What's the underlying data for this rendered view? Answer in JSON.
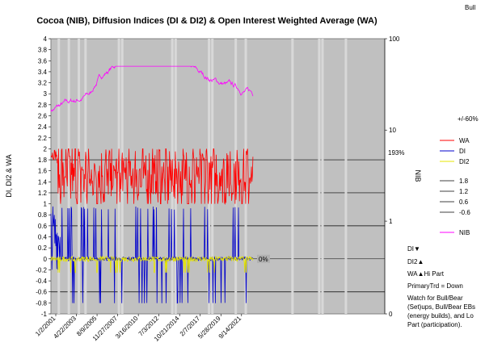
{
  "corner_label": "Bull",
  "chart_data": {
    "type": "line",
    "title": "Cocoa (NIB), Diffusion Indices (DI & DI2) & Open Interest Weighted Average (WA)",
    "ylabel": "DI, DI2 & WA",
    "y2label": "NIB",
    "ylim": [
      -1,
      4
    ],
    "y_ticks": [
      "-1",
      "-0.8",
      "-0.6",
      "-0.4",
      "-0.2",
      "0",
      "0.2",
      "0.4",
      "0.6",
      "0.8",
      "1",
      "1.2",
      "1.4",
      "1.6",
      "1.8",
      "2",
      "2.2",
      "2.4",
      "2.6",
      "2.8",
      "3",
      "3.2",
      "3.4",
      "3.6",
      "3.8",
      "4"
    ],
    "y2_scale": "log",
    "y2_ticks": [
      "0",
      "1",
      "10",
      "100"
    ],
    "x_tick_labels": [
      "1/2/2001",
      "4/22/2003",
      "8/9/2005",
      "11/27/2007",
      "3/16/2010",
      "7/3/2012",
      "10/21/2014",
      "2/7/2017",
      "5/28/2019",
      "9/14/2021"
    ],
    "reference_lines": [
      1.8,
      1.2,
      0.6,
      -0.6
    ],
    "annotations": [
      {
        "text": "193%",
        "y": 1.93
      },
      {
        "text": "0%",
        "y": 0.0
      },
      {
        "text": "+/-60%",
        "y": 2.67
      }
    ],
    "series": [
      {
        "name": "WA",
        "color": "#ff0000",
        "range": [
          1.0,
          2.0
        ]
      },
      {
        "name": "DI",
        "color": "#0000cc",
        "range": [
          -1.0,
          1.0
        ]
      },
      {
        "name": "DI2",
        "color": "#e6e600",
        "range": [
          -0.3,
          0.15
        ]
      },
      {
        "name": "NIB",
        "color": "#ff00ff",
        "range": [
          2.6,
          3.5
        ]
      }
    ],
    "legend_lines": [
      {
        "name": "1.8"
      },
      {
        "name": "1.2"
      },
      {
        "name": "0.6"
      },
      {
        "name": "-0.6"
      }
    ]
  },
  "notes": {
    "di_down": "DI▼",
    "di2_up": "DI2▲",
    "wa_up": "WA▲Hi Part",
    "primary_trend": "PrimaryTrd = Down",
    "watch": "Watch for Bull/Bear (Set)ups, Bull/Bear EBs (energy builds), and Lo Part (participation)."
  }
}
